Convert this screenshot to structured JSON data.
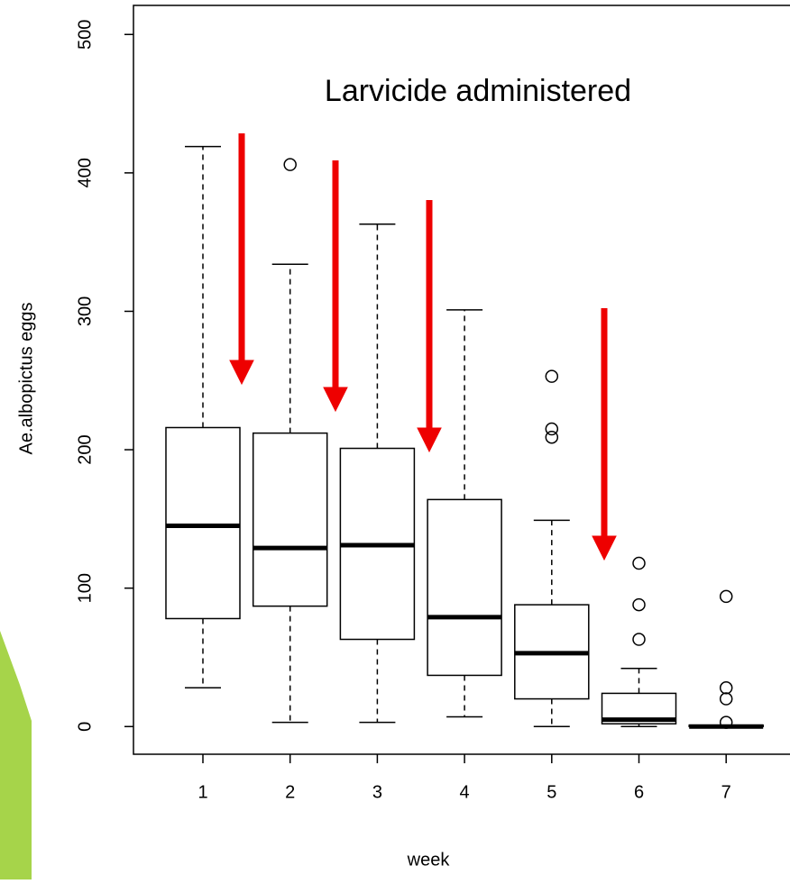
{
  "chart_data": {
    "type": "boxplot",
    "xlabel": "week",
    "ylabel": "Ae.albopictus eggs",
    "annotation": "Larvicide administered",
    "categories": [
      "1",
      "2",
      "3",
      "4",
      "5",
      "6",
      "7"
    ],
    "boxes": [
      {
        "min": 28,
        "q1": 78,
        "median": 145,
        "q3": 216,
        "max": 419,
        "outliers": []
      },
      {
        "min": 3,
        "q1": 87,
        "median": 129,
        "q3": 212,
        "max": 334,
        "outliers": [
          406
        ]
      },
      {
        "min": 3,
        "q1": 63,
        "median": 131,
        "q3": 201,
        "max": 363,
        "outliers": []
      },
      {
        "min": 7,
        "q1": 37,
        "median": 79,
        "q3": 164,
        "max": 301,
        "outliers": []
      },
      {
        "min": 0,
        "q1": 20,
        "median": 53,
        "q3": 88,
        "max": 149,
        "outliers": [
          253,
          215,
          209
        ]
      },
      {
        "min": 0,
        "q1": 2,
        "median": 5,
        "q3": 24,
        "max": 42,
        "outliers": [
          118,
          88,
          63
        ]
      },
      {
        "min": 0,
        "q1": 0,
        "median": 0,
        "q3": 1,
        "max": 1,
        "outliers": [
          94,
          28,
          20,
          3
        ]
      }
    ],
    "ylim": [
      -20,
      521
    ],
    "yticks": [
      0,
      100,
      200,
      300,
      400,
      500
    ],
    "color": "#000000"
  }
}
